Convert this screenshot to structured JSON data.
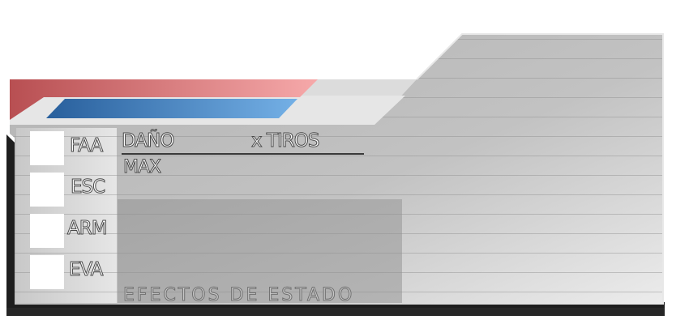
{
  "stats": [
    {
      "key": "faa",
      "label": "FAA"
    },
    {
      "key": "esc",
      "label": "ESC"
    },
    {
      "key": "arm",
      "label": "ARM"
    },
    {
      "key": "eva",
      "label": "EVA"
    }
  ],
  "damage": {
    "label": "DAÑO",
    "shots_label": "x TIROS",
    "max_label": "MAX"
  },
  "status_effects": {
    "title": "EFECTOS DE ESTADO"
  },
  "colors": {
    "red_accent": "#b84f52",
    "red_light": "#f3a2a3",
    "blue_accent": "#2b67a4",
    "blue_light": "#6aa7e0",
    "panel_gray": "#bdbdbd",
    "frame_dark": "#1e1e1e"
  }
}
